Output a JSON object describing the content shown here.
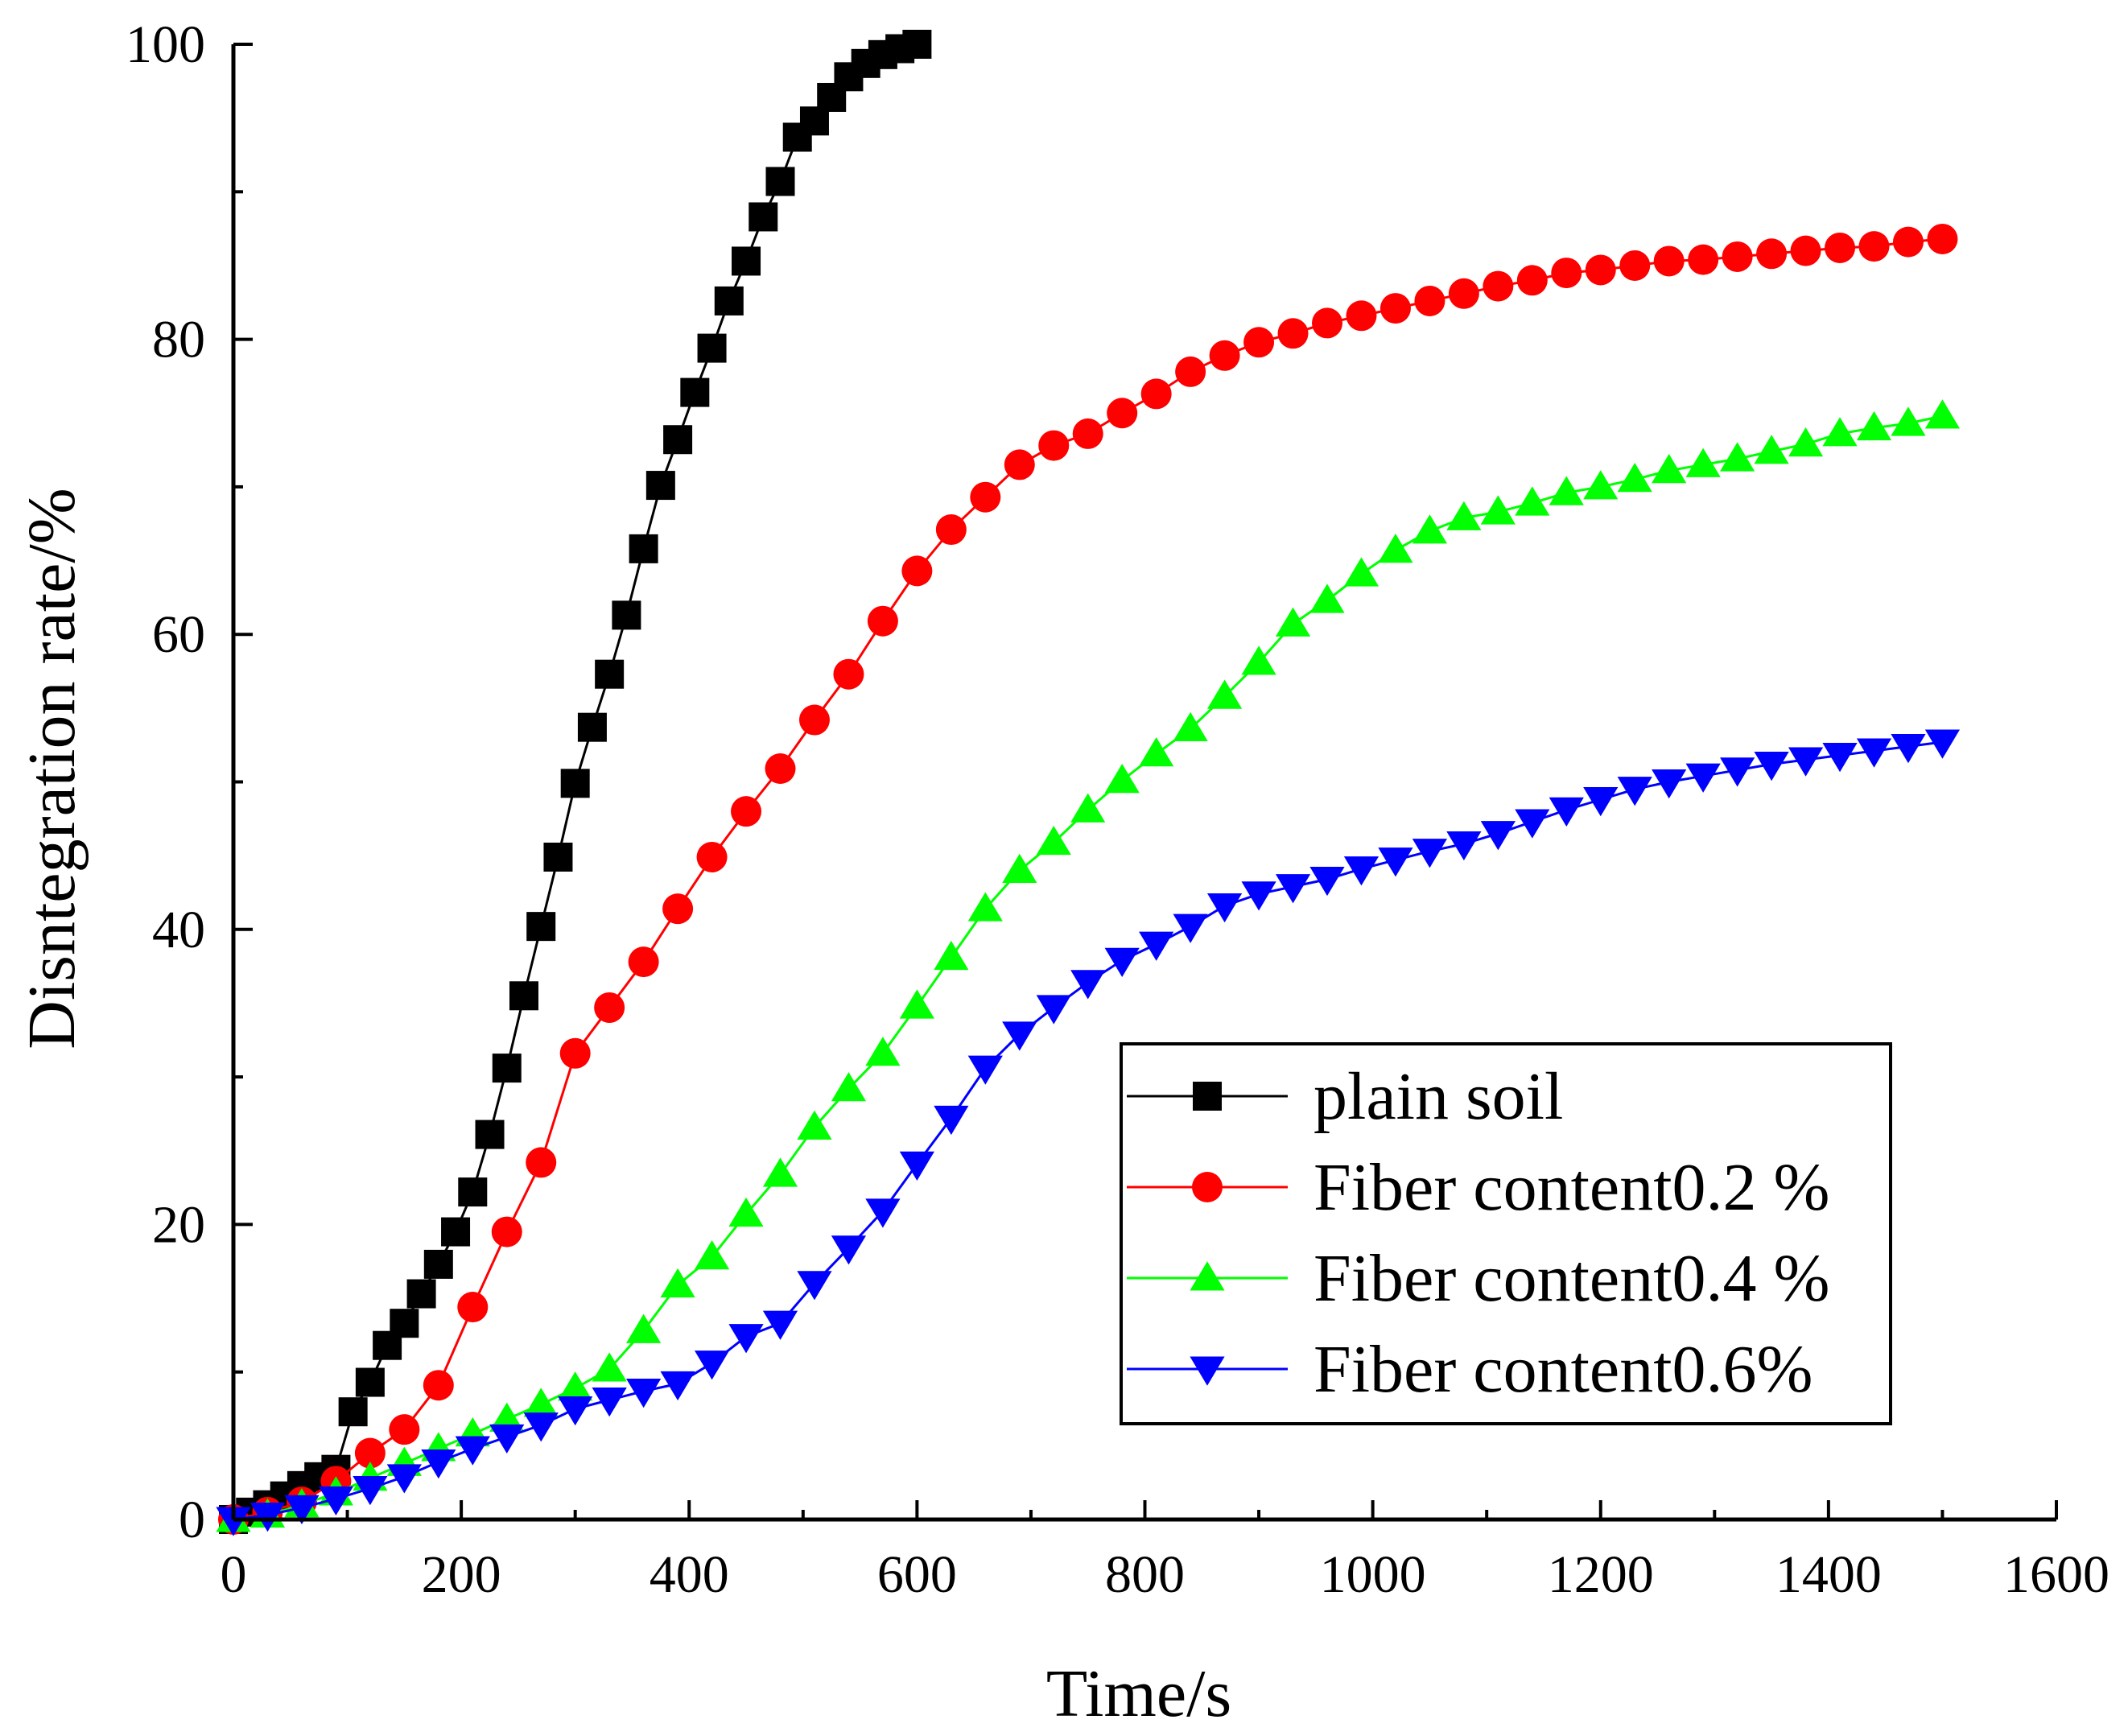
{
  "chart_data": {
    "type": "line",
    "title": "",
    "xlabel": "Time/s",
    "ylabel": "Disntegration rate/%",
    "xlim": [
      0,
      1600
    ],
    "ylim": [
      0,
      100
    ],
    "xticks": [
      0,
      200,
      400,
      600,
      800,
      1000,
      1200,
      1400,
      1600
    ],
    "yticks": [
      0,
      20,
      40,
      60,
      80,
      100
    ],
    "legend_position": "lower-right",
    "series": [
      {
        "name": "plain soil",
        "color": "#000000",
        "marker": "square",
        "x": [
          0,
          15,
          30,
          45,
          60,
          75,
          90,
          105,
          120,
          135,
          150,
          165,
          180,
          195,
          210,
          225,
          240,
          255,
          270,
          285,
          300,
          315,
          330,
          345,
          360,
          375,
          390,
          405,
          420,
          435,
          450,
          465,
          480,
          495,
          510,
          525,
          540,
          555,
          570,
          585,
          600
        ],
        "y": [
          0.0,
          0.5,
          1.0,
          1.6,
          2.3,
          2.9,
          3.4,
          7.3,
          9.3,
          11.8,
          13.3,
          15.3,
          17.3,
          19.5,
          22.2,
          26.1,
          30.6,
          35.5,
          40.2,
          44.9,
          49.9,
          53.7,
          57.3,
          61.3,
          65.8,
          70.1,
          73.2,
          76.4,
          79.4,
          82.6,
          85.3,
          88.3,
          90.7,
          93.7,
          94.8,
          96.4,
          97.8,
          98.7,
          99.3,
          99.7,
          100.0
        ]
      },
      {
        "name": "Fiber content0.2 %",
        "color": "#ff0000",
        "marker": "circle",
        "x": [
          0,
          30,
          60,
          90,
          120,
          150,
          180,
          210,
          240,
          270,
          300,
          330,
          360,
          390,
          420,
          450,
          480,
          510,
          540,
          570,
          600,
          630,
          660,
          690,
          720,
          750,
          780,
          810,
          840,
          870,
          900,
          930,
          960,
          990,
          1020,
          1050,
          1080,
          1110,
          1140,
          1170,
          1200,
          1230,
          1260,
          1290,
          1320,
          1350,
          1380,
          1410,
          1440,
          1470,
          1500
        ],
        "y": [
          0.0,
          0.5,
          1.2,
          2.6,
          4.5,
          6.1,
          9.1,
          14.4,
          19.5,
          24.2,
          31.6,
          34.7,
          37.8,
          41.4,
          44.9,
          48.0,
          50.9,
          54.2,
          57.3,
          60.9,
          64.3,
          67.1,
          69.3,
          71.5,
          72.8,
          73.6,
          75.0,
          76.3,
          77.8,
          78.9,
          79.8,
          80.4,
          81.1,
          81.6,
          82.1,
          82.6,
          83.1,
          83.6,
          84.0,
          84.5,
          84.7,
          85.0,
          85.3,
          85.4,
          85.6,
          85.8,
          86.0,
          86.2,
          86.3,
          86.6,
          86.8
        ]
      },
      {
        "name": "Fiber content0.4 %",
        "color": "#00ff00",
        "marker": "triangle-up",
        "x": [
          0,
          30,
          60,
          90,
          120,
          150,
          180,
          210,
          240,
          270,
          300,
          330,
          360,
          390,
          420,
          450,
          480,
          510,
          540,
          570,
          600,
          630,
          660,
          690,
          720,
          750,
          780,
          810,
          840,
          870,
          900,
          930,
          960,
          990,
          1020,
          1050,
          1080,
          1110,
          1140,
          1170,
          1200,
          1230,
          1260,
          1290,
          1320,
          1350,
          1380,
          1410,
          1440,
          1470,
          1500
        ],
        "y": [
          0.0,
          0.3,
          1.0,
          1.8,
          2.8,
          3.8,
          4.8,
          5.8,
          6.8,
          7.8,
          8.9,
          10.2,
          12.8,
          15.9,
          17.8,
          20.7,
          23.4,
          26.6,
          29.2,
          31.6,
          34.8,
          38.1,
          41.4,
          44.0,
          45.9,
          48.1,
          50.1,
          51.9,
          53.6,
          55.8,
          58.1,
          60.7,
          62.3,
          64.1,
          65.7,
          67.0,
          67.9,
          68.3,
          68.9,
          69.6,
          70.0,
          70.5,
          71.1,
          71.5,
          71.9,
          72.4,
          72.9,
          73.6,
          74.0,
          74.3,
          74.8
        ]
      },
      {
        "name": "Fiber content0.6%",
        "color": "#0000ff",
        "marker": "triangle-down",
        "x": [
          0,
          30,
          60,
          90,
          120,
          150,
          180,
          210,
          240,
          270,
          300,
          330,
          360,
          390,
          420,
          450,
          480,
          510,
          540,
          570,
          600,
          630,
          660,
          690,
          720,
          750,
          780,
          810,
          840,
          870,
          900,
          930,
          960,
          990,
          1020,
          1050,
          1080,
          1110,
          1140,
          1170,
          1200,
          1230,
          1260,
          1290,
          1320,
          1350,
          1380,
          1410,
          1440,
          1470,
          1500
        ],
        "y": [
          0.0,
          0.3,
          0.8,
          1.4,
          2.1,
          2.9,
          3.9,
          4.8,
          5.6,
          6.4,
          7.5,
          8.1,
          8.7,
          9.2,
          10.6,
          12.4,
          13.3,
          16.0,
          18.4,
          20.9,
          24.1,
          27.2,
          30.6,
          32.9,
          34.7,
          36.4,
          37.9,
          39.0,
          40.2,
          41.6,
          42.4,
          42.9,
          43.4,
          44.1,
          44.7,
          45.3,
          45.8,
          46.5,
          47.3,
          48.1,
          48.8,
          49.5,
          50.0,
          50.4,
          50.8,
          51.2,
          51.5,
          51.8,
          52.1,
          52.4,
          52.7
        ]
      }
    ]
  }
}
